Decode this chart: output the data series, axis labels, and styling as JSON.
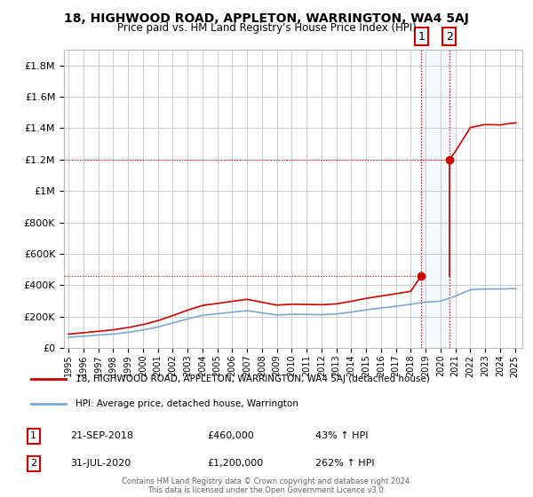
{
  "title": "18, HIGHWOOD ROAD, APPLETON, WARRINGTON, WA4 5AJ",
  "subtitle": "Price paid vs. HM Land Registry's House Price Index (HPI)",
  "legend_line1": "18, HIGHWOOD ROAD, APPLETON, WARRINGTON, WA4 5AJ (detached house)",
  "legend_line2": "HPI: Average price, detached house, Warrington",
  "footer": "Contains HM Land Registry data © Crown copyright and database right 2024.\nThis data is licensed under the Open Government Licence v3.0.",
  "ann1_label": "1",
  "ann1_date": "21-SEP-2018",
  "ann1_price": "£460,000",
  "ann1_pct": "43% ↑ HPI",
  "ann2_label": "2",
  "ann2_date": "31-JUL-2020",
  "ann2_price": "£1,200,000",
  "ann2_pct": "262% ↑ HPI",
  "sale1_x": 2018.72,
  "sale1_y": 460000,
  "sale2_x": 2020.58,
  "sale2_y": 1200000,
  "hpi_color": "#7aa8d2",
  "price_color": "#cc0000",
  "annotation_fill": "#e8f0f8",
  "annotation_border": "#cc0000",
  "grid_color": "#cccccc",
  "background_color": "#ffffff",
  "ylim": [
    0,
    1900000
  ],
  "xlim_start": 1994.7,
  "xlim_end": 2025.5,
  "yticks": [
    0,
    200000,
    400000,
    600000,
    800000,
    1000000,
    1200000,
    1400000,
    1600000,
    1800000
  ],
  "xtick_years": [
    1995,
    1996,
    1997,
    1998,
    1999,
    2000,
    2001,
    2002,
    2003,
    2004,
    2005,
    2006,
    2007,
    2008,
    2009,
    2010,
    2011,
    2012,
    2013,
    2014,
    2015,
    2016,
    2017,
    2018,
    2019,
    2020,
    2021,
    2022,
    2023,
    2024,
    2025
  ]
}
